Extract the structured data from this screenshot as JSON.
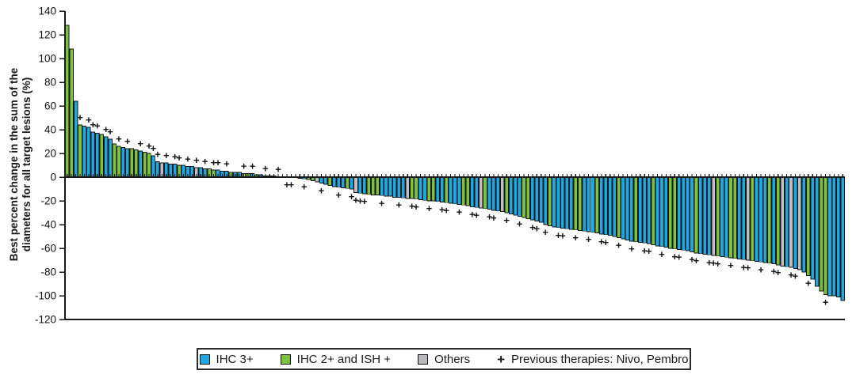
{
  "chart_data": {
    "type": "bar",
    "subtype": "waterfall",
    "title": "",
    "ylabel_line1": "Best percent change in the sum of the",
    "ylabel_line2": "diameters for all target lesions (%)",
    "ylim": [
      -120,
      140
    ],
    "yticks": [
      140,
      120,
      100,
      80,
      60,
      40,
      20,
      0,
      -20,
      -40,
      -60,
      -80,
      -100,
      -120
    ],
    "grid": false,
    "n_bars": 181,
    "values": [
      128,
      108,
      64,
      44,
      43,
      42,
      38,
      37,
      36,
      34,
      32,
      28,
      26,
      25,
      24,
      24,
      23,
      22,
      21,
      20,
      18,
      13,
      12,
      12,
      11,
      11,
      10,
      10,
      9,
      9,
      8,
      8,
      7,
      7,
      6,
      6,
      5,
      5,
      4,
      4,
      4,
      3,
      3,
      3,
      2,
      2,
      1,
      1,
      1,
      0.5,
      0.5,
      0,
      0,
      -0.5,
      -1,
      -1.5,
      -2,
      -3,
      -4,
      -5,
      -6,
      -7,
      -8,
      -8.5,
      -9,
      -9.5,
      -10,
      -13,
      -13.5,
      -14,
      -14.5,
      -15,
      -15,
      -15.5,
      -16,
      -16,
      -17,
      -17,
      -17.5,
      -18,
      -18,
      -18.5,
      -19,
      -19.5,
      -20,
      -20,
      -20.5,
      -21,
      -21.5,
      -22,
      -22.5,
      -23,
      -23.5,
      -24,
      -25,
      -25.5,
      -26,
      -26.5,
      -27,
      -28,
      -28.5,
      -29,
      -30,
      -31,
      -32,
      -33,
      -34,
      -35,
      -36,
      -37,
      -38,
      -40,
      -41,
      -42,
      -42.5,
      -43,
      -43.5,
      -44,
      -44.5,
      -45,
      -45.5,
      -46,
      -46.5,
      -47,
      -48,
      -48.5,
      -49,
      -50,
      -51,
      -52,
      -53,
      -54,
      -54.5,
      -55,
      -55.5,
      -56,
      -57,
      -58,
      -58.5,
      -59,
      -60,
      -60.5,
      -61,
      -61.5,
      -62,
      -63,
      -64,
      -64.5,
      -65,
      -65.5,
      -66,
      -66.5,
      -67,
      -67.5,
      -68,
      -68.5,
      -69,
      -69.5,
      -70,
      -70.5,
      -71,
      -71.5,
      -72,
      -72.5,
      -73,
      -74,
      -75,
      -75.5,
      -76,
      -77,
      -78,
      -80,
      -83,
      -86,
      -92,
      -96,
      -99,
      -100,
      -100,
      -101,
      -104
    ],
    "bar_colors": "ggbgbbbbgbbggbbggbggbbobbbgbbbobbggbbbgbbggbgbbgbbgbgbbbggobbgbbbgbobbgggbbbbbboggbbggbbgbbbggbbogbbbogbbbggbbbbgbbbbbggbbbgbbbbgbbbgbbbgbbbggbbbbgbbbogbbggbbogbbbgbgobobobgbbggbbbb",
    "plus_markers": "0001011101101010010111010110101010110100010100100101100100010001001111000100010011001001100100110011001001001101001100100100110010010011001001100110011100100110010011001100100010000011111",
    "color_map": {
      "b": "#1ea7e1",
      "g": "#7dc23f",
      "o": "#bfc0c6"
    },
    "axis_color": "#1a1a1a",
    "legend_position": "bottom"
  },
  "legend": {
    "items": [
      {
        "key": "ihc3",
        "label": "IHC 3+",
        "color": "#1ea7e1"
      },
      {
        "key": "ihc2",
        "label": "IHC 2+ and ISH +",
        "color": "#7dc23f"
      },
      {
        "key": "others",
        "label": "Others",
        "color": "#b9b9bc"
      }
    ],
    "plus_symbol": "+",
    "plus_label": "Previous therapies: Nivo, Pembro"
  }
}
